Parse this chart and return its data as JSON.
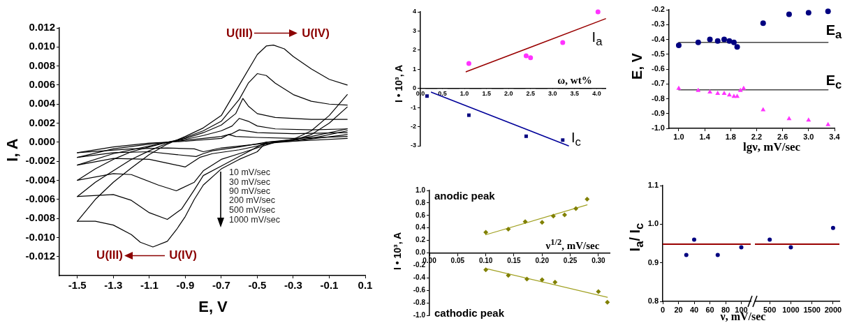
{
  "chart_data": [
    {
      "type": "line",
      "xlabel": "E, V",
      "ylabel": "I, A",
      "annotations": [
        "U(III)",
        "U(IV)",
        "U(III)",
        "U(IV)",
        "10 mV/sec",
        "30 mV/sec",
        "90 mV/sec",
        "200 mV/sec",
        "500 mV/sec",
        "1000 mV/sec"
      ],
      "xlim": [
        -1.6,
        0.1
      ],
      "ylim": [
        -0.014,
        0.012
      ],
      "xticks": [
        -1.5,
        -1.3,
        -1.1,
        -0.9,
        -0.7,
        -0.5,
        -0.3,
        -0.1,
        0.1
      ],
      "yticks": [
        {
          "value": -0.012,
          "label": "-0.012"
        },
        {
          "value": -0.01,
          "label": "-0.010"
        },
        {
          "value": -0.008,
          "label": "-0.008"
        },
        {
          "value": -0.006,
          "label": "-0.006"
        },
        {
          "value": -0.004,
          "label": "-0.004"
        },
        {
          "value": -0.002,
          "label": "-0.002"
        },
        {
          "value": 0,
          "label": "0.000"
        },
        {
          "value": 0.002,
          "label": "0.002"
        },
        {
          "value": 0.004,
          "label": "0.004"
        },
        {
          "value": 0.006,
          "label": "0.006"
        },
        {
          "value": 0.008,
          "label": "0.008"
        },
        {
          "value": 0.01,
          "label": "0.010"
        },
        {
          "value": 0.012,
          "label": "0.012"
        }
      ],
      "series": [
        {
          "color": "#000000",
          "x": [
            -1.5,
            -1.3,
            -1.1,
            -0.9,
            -0.7,
            -0.66,
            -0.62,
            -0.5,
            -0.3,
            0
          ],
          "values": [
            -0.0011,
            -0.0005,
            -0.0001,
            0.0001,
            0.0004,
            0.0008,
            0.0006,
            0.0005,
            0.0004,
            0.0006
          ]
        },
        {
          "color": "#000000",
          "x": [
            -1.5,
            -1.2,
            -1.0,
            -0.85,
            -0.8,
            -0.7,
            -0.5,
            -0.3,
            0
          ],
          "values": [
            -0.0011,
            -0.0007,
            -0.0006,
            -0.0007,
            -0.001,
            -0.0006,
            -0.0002,
            0.0001,
            0.0004
          ]
        },
        {
          "color": "#000000",
          "x": [
            -1.5,
            -1.3,
            -1.1,
            -0.9,
            -0.7,
            -0.64,
            -0.6,
            -0.5,
            -0.3,
            0
          ],
          "values": [
            -0.0016,
            -0.0007,
            -0.0002,
            0.0002,
            0.0006,
            0.0009,
            0.0013,
            0.001,
            0.0009,
            0.001
          ]
        },
        {
          "color": "#000000",
          "x": [
            -1.5,
            -1.3,
            -1.1,
            -0.95,
            -0.84,
            -0.8,
            -0.75,
            -0.6,
            -0.45,
            -0.3,
            0
          ],
          "values": [
            -0.0016,
            -0.0011,
            -0.001,
            -0.0013,
            -0.0015,
            -0.0012,
            -0.0009,
            -0.0005,
            0,
            0.0001,
            0.0008
          ]
        },
        {
          "color": "#000000",
          "x": [
            -1.5,
            -1.3,
            -1.1,
            -1.0,
            -0.9,
            -0.8,
            -0.7,
            -0.64,
            -0.6,
            -0.55,
            -0.5,
            -0.4,
            -0.2,
            0
          ],
          "values": [
            -0.0024,
            -0.0012,
            -0.0004,
            0,
            0.0003,
            0.0007,
            0.0012,
            0.0017,
            0.0025,
            0.0022,
            0.0017,
            0.0014,
            0.0013,
            0.0014
          ]
        },
        {
          "color": "#000000",
          "x": [
            -1.5,
            -1.3,
            -1.1,
            -1.0,
            -0.9,
            -0.82,
            -0.75,
            -0.6,
            -0.4,
            -0.2,
            0
          ],
          "values": [
            -0.0024,
            -0.0017,
            -0.0018,
            -0.0022,
            -0.0026,
            -0.0016,
            -0.0012,
            -0.0008,
            0,
            0.0004,
            0.0012
          ]
        },
        {
          "color": "#000000",
          "x": [
            -1.5,
            -1.4,
            -1.3,
            -1.2,
            -1.1,
            -1.0,
            -0.9,
            -0.8,
            -0.7,
            -0.62,
            -0.58,
            -0.55,
            -0.5,
            -0.4,
            -0.2,
            0
          ],
          "values": [
            -0.004,
            -0.0028,
            -0.0018,
            -0.001,
            -0.0005,
            0,
            0.0004,
            0.001,
            0.0018,
            0.003,
            0.0046,
            0.0038,
            0.003,
            0.0026,
            0.0024,
            0.0024
          ]
        },
        {
          "color": "#000000",
          "x": [
            -1.5,
            -1.3,
            -1.2,
            -1.05,
            -0.95,
            -0.85,
            -0.8,
            -0.7,
            -0.6,
            -0.5,
            -0.4,
            -0.2,
            0
          ],
          "values": [
            -0.004,
            -0.0033,
            -0.0034,
            -0.0045,
            -0.0051,
            -0.0042,
            -0.003,
            -0.0018,
            -0.0012,
            -0.0006,
            0,
            0.0006,
            0.0014
          ]
        },
        {
          "color": "#000000",
          "x": [
            -1.5,
            -1.4,
            -1.3,
            -1.2,
            -1.1,
            -1.0,
            -0.9,
            -0.8,
            -0.7,
            -0.6,
            -0.55,
            -0.5,
            -0.45,
            -0.4,
            -0.3,
            -0.2,
            -0.1,
            0
          ],
          "values": [
            -0.0057,
            -0.0042,
            -0.003,
            -0.0018,
            -0.0009,
            -0.0001,
            0.0005,
            0.0012,
            0.0022,
            0.0045,
            0.0062,
            0.0072,
            0.007,
            0.0062,
            0.005,
            0.0043,
            0.004,
            0.0039
          ]
        },
        {
          "color": "#000000",
          "x": [
            -1.5,
            -1.3,
            -1.2,
            -1.1,
            -1.0,
            -0.92,
            -0.85,
            -0.8,
            -0.7,
            -0.6,
            -0.45,
            -0.3,
            -0.2,
            -0.1,
            0
          ],
          "values": [
            -0.0057,
            -0.0055,
            -0.0061,
            -0.0074,
            -0.0081,
            -0.007,
            -0.005,
            -0.0035,
            -0.0025,
            -0.0015,
            0,
            0.0002,
            0.0008,
            0.002,
            0.0037
          ]
        },
        {
          "color": "#000000",
          "x": [
            -1.5,
            -1.4,
            -1.3,
            -1.2,
            -1.1,
            -1.0,
            -0.9,
            -0.8,
            -0.7,
            -0.6,
            -0.5,
            -0.45,
            -0.41,
            -0.35,
            -0.3,
            -0.2,
            -0.1,
            0
          ],
          "values": [
            -0.0083,
            -0.006,
            -0.0042,
            -0.0027,
            -0.0013,
            -0.0002,
            0.0006,
            0.0015,
            0.0028,
            0.006,
            0.0092,
            0.0101,
            0.0102,
            0.0098,
            0.009,
            0.0077,
            0.0066,
            0.006
          ]
        },
        {
          "color": "#000000",
          "x": [
            -1.5,
            -1.4,
            -1.3,
            -1.2,
            -1.15,
            -1.08,
            -1.0,
            -0.95,
            -0.9,
            -0.85,
            -0.8,
            -0.7,
            -0.6,
            -0.5,
            -0.45,
            -0.3,
            -0.2,
            -0.1,
            0
          ],
          "values": [
            -0.0083,
            -0.0083,
            -0.0087,
            -0.0097,
            -0.0105,
            -0.011,
            -0.0104,
            -0.0092,
            -0.0078,
            -0.006,
            -0.0045,
            -0.0028,
            -0.0018,
            -0.001,
            0,
            0.0003,
            0.0012,
            0.0028,
            0.005
          ]
        }
      ]
    },
    {
      "type": "scatter",
      "xlabel": "ω,  wt%",
      "ylabel": "I • 10³, A",
      "xlim": [
        0,
        4.2
      ],
      "ylim": [
        -3,
        4
      ],
      "xticks": [
        {
          "value": 0,
          "label": "0.0"
        },
        0.5,
        {
          "value": 1,
          "label": "1.0"
        },
        1.5,
        {
          "value": 2,
          "label": "2.0"
        },
        2.5,
        {
          "value": 3,
          "label": "3.0"
        },
        3.5,
        {
          "value": 4,
          "label": "4.0"
        }
      ],
      "yticks": [
        -3,
        -2,
        -1,
        0,
        1,
        2,
        3,
        4
      ],
      "series": [
        {
          "name": "I$_{a}$",
          "color": "#ff33ff",
          "marker": "circle",
          "x": [
            1.1,
            2.4,
            2.5,
            3.23,
            4.03
          ],
          "values": [
            1.3,
            1.7,
            1.6,
            2.4,
            4.0
          ]
        },
        {
          "type": "line",
          "color": "#990000",
          "x": [
            1.04,
            4.2
          ],
          "values": [
            0.87,
            3.64
          ]
        },
        {
          "name": "I$_{c}$",
          "color": "#000080",
          "marker": "square",
          "x": [
            0.15,
            1.1,
            2.4,
            3.23
          ],
          "values": [
            -0.4,
            -1.4,
            -2.5,
            -2.7
          ]
        },
        {
          "type": "line",
          "color": "#000099",
          "x": [
            0.25,
            3.36
          ],
          "values": [
            -0.2,
            -3.0
          ]
        }
      ]
    },
    {
      "type": "scatter",
      "xlabel": "lgν, mV/sec",
      "ylabel": "E, V",
      "xlim": [
        0.85,
        3.4
      ],
      "ylim": [
        -1.0,
        -0.2
      ],
      "xticks": [
        {
          "value": 1,
          "label": "1.0"
        },
        1.4,
        1.8,
        2.2,
        2.6,
        {
          "value": 3,
          "label": "3.0"
        },
        3.4
      ],
      "yticks": [
        {
          "value": -1,
          "label": "-1.0"
        },
        -0.9,
        -0.8,
        -0.7,
        -0.6,
        -0.5,
        -0.4,
        -0.3,
        -0.2
      ],
      "series": [
        {
          "name": "E$_{a}$",
          "color": "#000080",
          "marker": "circle",
          "x": [
            1.0,
            1.3,
            1.48,
            1.6,
            1.7,
            1.78,
            1.85,
            1.9,
            2.3,
            2.7,
            3.0,
            3.3
          ],
          "values": [
            -0.44,
            -0.42,
            -0.4,
            -0.41,
            -0.4,
            -0.41,
            -0.42,
            -0.45,
            -0.29,
            -0.23,
            -0.22,
            -0.21
          ]
        },
        {
          "name": "E$_{c}$",
          "color": "#ff33ff",
          "marker": "triangle",
          "x": [
            1.0,
            1.3,
            1.48,
            1.6,
            1.7,
            1.78,
            1.85,
            1.9,
            1.95,
            2.0,
            2.3,
            2.7,
            3.0,
            3.3
          ],
          "values": [
            -0.73,
            -0.745,
            -0.755,
            -0.765,
            -0.765,
            -0.775,
            -0.785,
            -0.785,
            -0.745,
            -0.73,
            -0.875,
            -0.935,
            -0.945,
            -0.975
          ]
        },
        {
          "type": "line",
          "color": "#444444",
          "x": [
            1.0,
            3.3
          ],
          "values": [
            -0.42,
            -0.42
          ]
        },
        {
          "type": "line",
          "color": "#444444",
          "x": [
            1.0,
            3.3
          ],
          "values": [
            -0.74,
            -0.74
          ]
        }
      ]
    },
    {
      "type": "scatter",
      "xlabel": "ν$^{1/2}$, mV/sec",
      "ylabel": "I • 10³, A",
      "annotations": [
        "anodic peak",
        "cathodic peak"
      ],
      "xlim": [
        0,
        0.32
      ],
      "ylim": [
        -1,
        1
      ],
      "xticks": [
        {
          "value": 0,
          "label": "0.00"
        },
        0.05,
        {
          "value": 0.1,
          "label": "0.10"
        },
        0.15,
        {
          "value": 0.2,
          "label": "0.20"
        },
        0.25,
        {
          "value": 0.3,
          "label": "0.30"
        }
      ],
      "yticks": [
        {
          "value": -1,
          "label": "-1.0"
        },
        -0.8,
        -0.6,
        -0.4,
        -0.2,
        {
          "value": 0,
          "label": "0.0"
        },
        0.2,
        0.4,
        0.6,
        0.8,
        {
          "value": 1,
          "label": "1.0"
        }
      ],
      "series": [
        {
          "color": "#808000",
          "marker": "diamond",
          "x": [
            0.1,
            0.14,
            0.17,
            0.2,
            0.22,
            0.24,
            0.26,
            0.28
          ],
          "values": [
            0.33,
            0.38,
            0.5,
            0.49,
            0.59,
            0.61,
            0.71,
            0.86
          ]
        },
        {
          "type": "line",
          "color": "#a0a020",
          "x": [
            0.1,
            0.28
          ],
          "values": [
            0.29,
            0.77
          ]
        },
        {
          "color": "#808000",
          "marker": "diamond",
          "x": [
            0.1,
            0.14,
            0.173,
            0.2,
            0.223,
            0.3,
            0.316
          ],
          "values": [
            -0.27,
            -0.36,
            -0.42,
            -0.43,
            -0.47,
            -0.62,
            -0.79
          ]
        },
        {
          "type": "line",
          "color": "#a0a020",
          "x": [
            0.1,
            0.316
          ],
          "values": [
            -0.25,
            -0.71
          ]
        }
      ]
    },
    {
      "type": "scatter",
      "xlabel": "ν, mV/sec",
      "ylabel": "I$_{a}$/ I$_{c}$",
      "xlim": [
        0,
        112
      ],
      "ylim": [
        0.8,
        1.1
      ],
      "xticks": [
        0,
        20,
        40,
        60,
        80,
        100
      ],
      "yticks": [
        0.8,
        0.9,
        {
          "value": 1,
          "label": "1.0"
        },
        1.1
      ],
      "ref_lines": [
        {
          "axis": "y",
          "value": 0.948,
          "color": "#990000"
        }
      ],
      "series": [
        {
          "color": "#000080",
          "marker": "circle",
          "x": [
            30,
            40,
            70,
            100
          ],
          "values": [
            0.92,
            0.96,
            0.92,
            0.94
          ]
        }
      ]
    },
    {
      "type": "scatter",
      "tick_labels": "x",
      "xlim": [
        150,
        2150
      ],
      "ylim": [
        0.8,
        1.1
      ],
      "xticks": [
        500,
        1000,
        1500,
        2000
      ],
      "ref_lines": [
        {
          "axis": "y",
          "value": 0.948,
          "color": "#990000"
        }
      ],
      "series": [
        {
          "color": "#000080",
          "marker": "circle",
          "x": [
            500,
            1000,
            2000
          ],
          "values": [
            0.96,
            0.94,
            0.99
          ]
        }
      ]
    }
  ]
}
